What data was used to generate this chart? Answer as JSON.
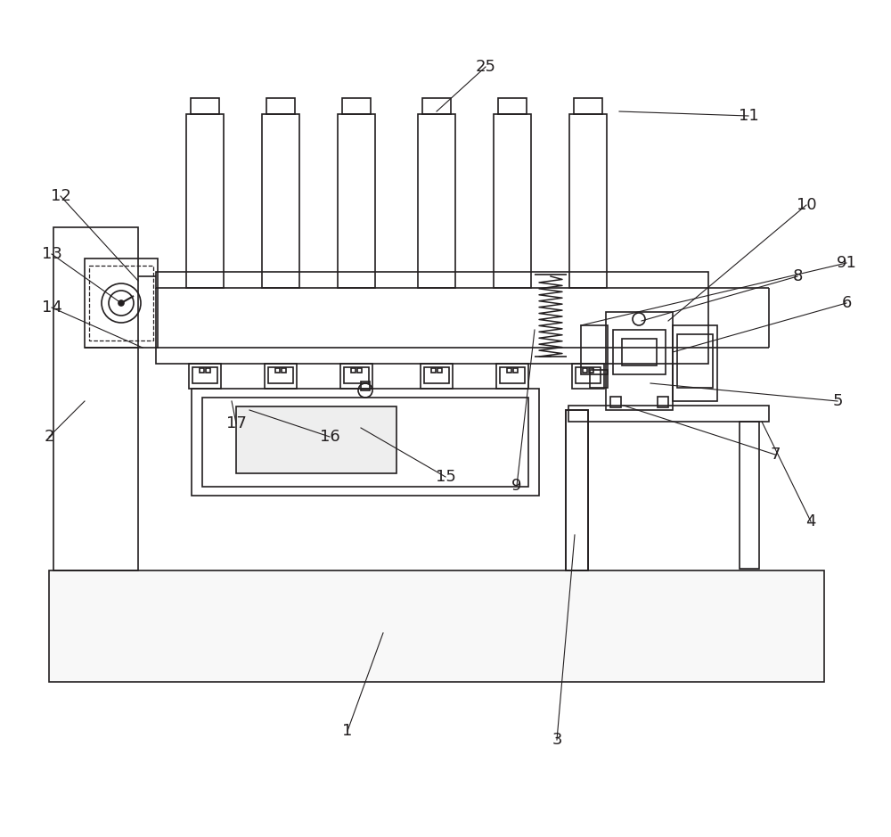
{
  "bg_color": "#ffffff",
  "line_color": "#231f20",
  "lw": 1.2,
  "fig_w": 10.0,
  "fig_h": 9.39,
  "annotation_lw": 0.8,
  "annotation_fontsize": 13
}
